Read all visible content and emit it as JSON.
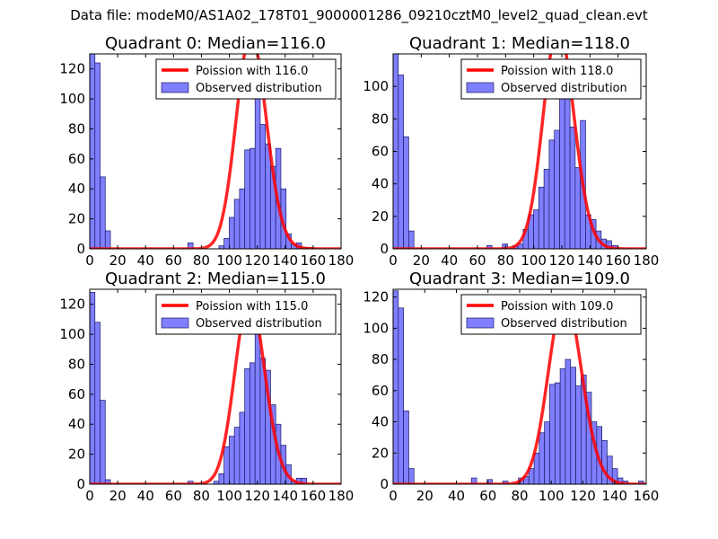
{
  "figure": {
    "suptitle": "Data file: modeM0/AS1A02_178T01_9000001286_09210cztM0_level2_quad_clean.evt"
  },
  "chart_data": [
    {
      "type": "bar",
      "title": "Quadrant 0: Median=116.0",
      "xlim": [
        0,
        180
      ],
      "ylim": [
        0,
        130
      ],
      "xticks": [
        0,
        20,
        40,
        60,
        80,
        100,
        120,
        140,
        160,
        180
      ],
      "yticks": [
        0,
        20,
        40,
        60,
        80,
        100,
        120
      ],
      "legend": {
        "placement": "top-right",
        "entries": [
          "Poission with 116.0",
          "Observed distribution"
        ]
      },
      "line": {
        "name": "Poission with 116.0",
        "mean": 116.0,
        "scale": 3860,
        "color": "#ff0000"
      },
      "histogram": {
        "name": "Observed distribution",
        "color": "#7f7fff",
        "bin_width": 3.7,
        "bins": [
          [
            0,
            135
          ],
          [
            3.7,
            124
          ],
          [
            7.4,
            48
          ],
          [
            11.1,
            12
          ],
          [
            70.3,
            4
          ],
          [
            92.5,
            2
          ],
          [
            96.2,
            7
          ],
          [
            99.9,
            21
          ],
          [
            103.6,
            33
          ],
          [
            107.3,
            40
          ],
          [
            111,
            66
          ],
          [
            114.7,
            67
          ],
          [
            118.4,
            107
          ],
          [
            122.1,
            83
          ],
          [
            125.8,
            70
          ],
          [
            129.5,
            55
          ],
          [
            133.2,
            67
          ],
          [
            136.9,
            40
          ],
          [
            140.6,
            10
          ],
          [
            144.3,
            3
          ],
          [
            148,
            4
          ],
          [
            151.7,
            1
          ],
          [
            155.4,
            1
          ]
        ]
      }
    },
    {
      "type": "bar",
      "title": "Quadrant 1: Median=118.0",
      "xlim": [
        0,
        180
      ],
      "ylim": [
        0,
        120
      ],
      "xticks": [
        0,
        20,
        40,
        60,
        80,
        100,
        120,
        140,
        160,
        180
      ],
      "yticks": [
        0,
        20,
        40,
        60,
        80,
        100
      ],
      "legend": {
        "placement": "top-right",
        "entries": [
          "Poission with 118.0",
          "Observed distribution"
        ]
      },
      "line": {
        "name": "Poission with 118.0",
        "mean": 118.0,
        "scale": 3720,
        "color": "#ff0000"
      },
      "histogram": {
        "name": "Observed distribution",
        "color": "#7f7fff",
        "bin_width": 3.7,
        "bins": [
          [
            0,
            120
          ],
          [
            3.7,
            107
          ],
          [
            7.4,
            69
          ],
          [
            11.1,
            11
          ],
          [
            66.6,
            2
          ],
          [
            77.7,
            3
          ],
          [
            85.1,
            2
          ],
          [
            88.8,
            3
          ],
          [
            92.5,
            12
          ],
          [
            96.2,
            21
          ],
          [
            99.9,
            24
          ],
          [
            103.6,
            38
          ],
          [
            107.3,
            49
          ],
          [
            111,
            67
          ],
          [
            114.7,
            73
          ],
          [
            118.4,
            94
          ],
          [
            122.1,
            100
          ],
          [
            125.8,
            75
          ],
          [
            129.5,
            50
          ],
          [
            133.2,
            79
          ],
          [
            136.9,
            21
          ],
          [
            140.6,
            18
          ],
          [
            144.3,
            11
          ],
          [
            148,
            6
          ],
          [
            151.7,
            5
          ],
          [
            155.4,
            2
          ]
        ]
      }
    },
    {
      "type": "bar",
      "title": "Quadrant 2: Median=115.0",
      "xlim": [
        0,
        180
      ],
      "ylim": [
        0,
        130
      ],
      "xticks": [
        0,
        20,
        40,
        60,
        80,
        100,
        120,
        140,
        160,
        180
      ],
      "yticks": [
        0,
        20,
        40,
        60,
        80,
        100,
        120
      ],
      "legend": {
        "placement": "top-right",
        "entries": [
          "Poission with 115.0",
          "Observed distribution"
        ]
      },
      "line": {
        "name": "Poission with 115.0",
        "mean": 115.0,
        "scale": 3330,
        "color": "#ff0000"
      },
      "histogram": {
        "name": "Observed distribution",
        "color": "#7f7fff",
        "bin_width": 3.7,
        "bins": [
          [
            0,
            128
          ],
          [
            3.7,
            108
          ],
          [
            7.4,
            56
          ],
          [
            11.1,
            3
          ],
          [
            70.3,
            2
          ],
          [
            88.8,
            2
          ],
          [
            92.5,
            7
          ],
          [
            96.2,
            25
          ],
          [
            99.9,
            32
          ],
          [
            103.6,
            38
          ],
          [
            107.3,
            48
          ],
          [
            111,
            77
          ],
          [
            114.7,
            81
          ],
          [
            118.4,
            114
          ],
          [
            122.1,
            84
          ],
          [
            125.8,
            76
          ],
          [
            129.5,
            53
          ],
          [
            133.2,
            40
          ],
          [
            136.9,
            26
          ],
          [
            140.6,
            13
          ],
          [
            144.3,
            2
          ],
          [
            148,
            4
          ],
          [
            151.7,
            4
          ]
        ]
      }
    },
    {
      "type": "bar",
      "title": "Quadrant 3: Median=109.0",
      "xlim": [
        0,
        160
      ],
      "ylim": [
        0,
        125
      ],
      "xticks": [
        0,
        20,
        40,
        60,
        80,
        100,
        120,
        140,
        160
      ],
      "yticks": [
        0,
        20,
        40,
        60,
        80,
        100,
        120
      ],
      "legend": {
        "placement": "top-right",
        "entries": [
          "Poission with 109.0",
          "Observed distribution"
        ]
      },
      "line": {
        "name": "Poission with 109.0",
        "mean": 109.0,
        "scale": 3140,
        "color": "#ff0000"
      },
      "histogram": {
        "name": "Observed distribution",
        "color": "#7f7fff",
        "bin_width": 3.3,
        "bins": [
          [
            0,
            124
          ],
          [
            3.3,
            113
          ],
          [
            6.6,
            47
          ],
          [
            9.9,
            10
          ],
          [
            49.5,
            4
          ],
          [
            59.4,
            3
          ],
          [
            69.3,
            2
          ],
          [
            79.2,
            4
          ],
          [
            82.5,
            5
          ],
          [
            85.8,
            10
          ],
          [
            89.1,
            20
          ],
          [
            92.4,
            33
          ],
          [
            95.7,
            40
          ],
          [
            99,
            64
          ],
          [
            102.3,
            65
          ],
          [
            105.6,
            74
          ],
          [
            108.9,
            80
          ],
          [
            112.2,
            75
          ],
          [
            115.5,
            63
          ],
          [
            118.8,
            70
          ],
          [
            122.1,
            59
          ],
          [
            125.4,
            40
          ],
          [
            128.7,
            37
          ],
          [
            132,
            28
          ],
          [
            135.3,
            18
          ],
          [
            138.6,
            10
          ],
          [
            141.9,
            4
          ],
          [
            145.2,
            2
          ],
          [
            155.1,
            2
          ]
        ]
      }
    }
  ]
}
